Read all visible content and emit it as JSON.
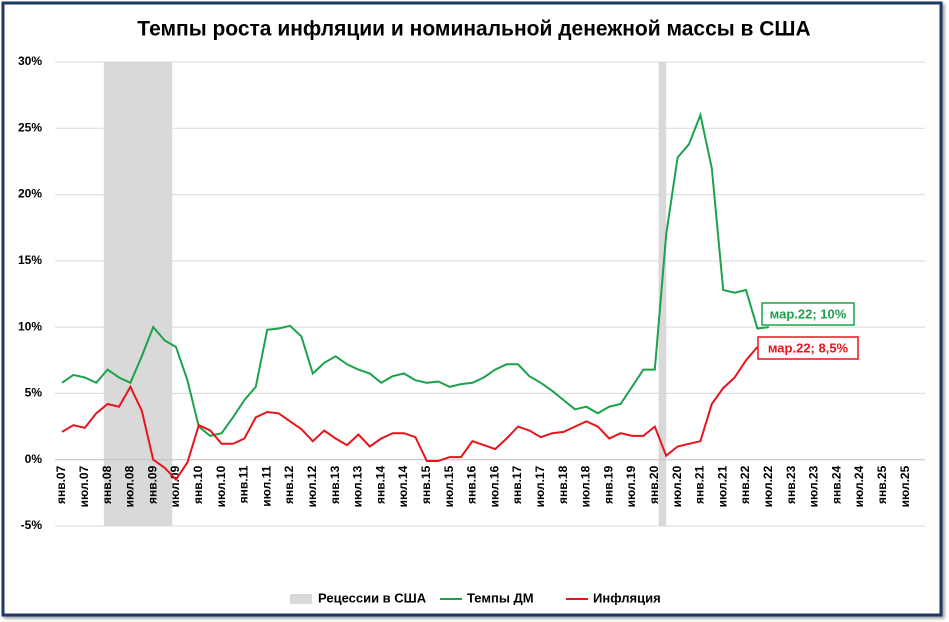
{
  "chart_data": {
    "type": "line",
    "title": "Темпы роста инфляции и номинальной денежной массы в США",
    "categories": [
      "янв.07",
      null,
      "июл.07",
      null,
      "янв.08",
      null,
      "июл.08",
      null,
      "янв.09",
      null,
      "июл.09",
      null,
      "янв.10",
      null,
      "июл.10",
      null,
      "янв.11",
      null,
      "июл.11",
      null,
      "янв.12",
      null,
      "июл.12",
      null,
      "янв.13",
      null,
      "июл.13",
      null,
      "янв.14",
      null,
      "июл.14",
      null,
      "янв.15",
      null,
      "июл.15",
      null,
      "янв.16",
      null,
      "июл.16",
      null,
      "янв.17",
      null,
      "июл.17",
      null,
      "янв.18",
      null,
      "июл.18",
      null,
      "янв.19",
      null,
      "июл.19",
      null,
      "янв.20",
      null,
      "июл.20",
      null,
      "янв.21",
      null,
      "июл.21",
      null,
      "янв.22",
      null,
      "июл.22",
      null,
      "янв.23",
      null,
      "июл.23",
      null,
      "янв.24",
      null,
      "июл.24",
      null,
      "янв.25",
      null,
      "июл.25"
    ],
    "series": [
      {
        "name": "Темпы ДМ",
        "color": "#1aa34a",
        "values": [
          5.8,
          6.4,
          6.2,
          5.8,
          6.8,
          6.2,
          5.8,
          7.8,
          10.0,
          9.0,
          8.5,
          6.0,
          2.5,
          1.8,
          2.0,
          3.2,
          4.5,
          5.5,
          9.8,
          9.9,
          10.1,
          9.3,
          6.5,
          7.3,
          7.8,
          7.2,
          6.8,
          6.5,
          5.8,
          6.3,
          6.5,
          6.0,
          5.8,
          5.9,
          5.5,
          5.7,
          5.8,
          6.2,
          6.8,
          7.2,
          7.2,
          6.3,
          5.8,
          5.2,
          4.5,
          3.8,
          4.0,
          3.5,
          4.0,
          4.2,
          5.5,
          6.8,
          6.8,
          17.0,
          22.8,
          23.8,
          26.0,
          22.0,
          12.8,
          12.6,
          12.8,
          9.9,
          10.0,
          null,
          null,
          null,
          null,
          null,
          null,
          null,
          null,
          null,
          null,
          null,
          null
        ]
      },
      {
        "name": "Инфляция",
        "color": "#e8141b",
        "values": [
          2.1,
          2.6,
          2.4,
          3.5,
          4.2,
          4.0,
          5.5,
          3.7,
          0.0,
          -0.6,
          -1.5,
          -0.2,
          2.6,
          2.2,
          1.2,
          1.2,
          1.6,
          3.2,
          3.6,
          3.5,
          2.9,
          2.3,
          1.4,
          2.2,
          1.6,
          1.1,
          1.9,
          1.0,
          1.6,
          2.0,
          2.0,
          1.7,
          -0.1,
          -0.1,
          0.2,
          0.2,
          1.4,
          1.1,
          0.8,
          1.6,
          2.5,
          2.2,
          1.7,
          2.0,
          2.1,
          2.5,
          2.9,
          2.5,
          1.6,
          2.0,
          1.8,
          1.8,
          2.5,
          0.3,
          1.0,
          1.2,
          1.4,
          4.2,
          5.4,
          6.2,
          7.5,
          8.5,
          null,
          null,
          null,
          null,
          null,
          null,
          null,
          null,
          null,
          null,
          null,
          null,
          null
        ]
      }
    ],
    "recessions": {
      "name": "Рецессии в США",
      "color": "#d9d9d9",
      "spans": [
        [
          3.67,
          9.67
        ],
        [
          52.33,
          53
        ]
      ]
    },
    "annotations": [
      {
        "text": "мар.22; 10%",
        "color": "#1aa34a"
      },
      {
        "text": "мар.22; 8,5%",
        "color": "#e8141b"
      }
    ],
    "ylim": [
      -5,
      30
    ],
    "yticks": [
      {
        "value": -5,
        "label": "-5%"
      },
      {
        "value": 0,
        "label": "0%"
      },
      {
        "value": 5,
        "label": "5%"
      },
      {
        "value": 10,
        "label": "10%"
      },
      {
        "value": 15,
        "label": "15%"
      },
      {
        "value": 20,
        "label": "20%"
      },
      {
        "value": 25,
        "label": "25%"
      },
      {
        "value": 30,
        "label": "30%"
      }
    ],
    "grid": true
  }
}
